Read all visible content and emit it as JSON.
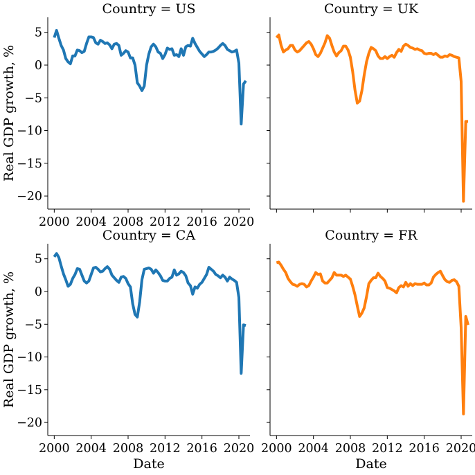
{
  "chart_data": [
    {
      "type": "line",
      "title": "Country = US",
      "xlabel": "",
      "ylabel": "Real GDP growth, %",
      "color": "#1f77b4",
      "xlim": [
        1999.3,
        2021.2
      ],
      "ylim": [
        -22,
        7.3
      ],
      "xticks": [
        2000,
        2004,
        2008,
        2012,
        2016,
        2020
      ],
      "yticks": [
        5,
        0,
        -5,
        -10,
        -15,
        -20
      ],
      "xtick_labels": [
        "2000",
        "2004",
        "2008",
        "2012",
        "2016",
        "2020"
      ],
      "ytick_labels": [
        "5",
        "0",
        "−5",
        "−10",
        "−15",
        "−20"
      ],
      "x": [
        2000.0,
        2000.25,
        2000.5,
        2000.75,
        2001.0,
        2001.25,
        2001.5,
        2001.75,
        2002.0,
        2002.25,
        2002.5,
        2002.75,
        2003.0,
        2003.25,
        2003.5,
        2003.75,
        2004.0,
        2004.25,
        2004.5,
        2004.75,
        2005.0,
        2005.25,
        2005.5,
        2005.75,
        2006.0,
        2006.25,
        2006.5,
        2006.75,
        2007.0,
        2007.25,
        2007.5,
        2007.75,
        2008.0,
        2008.25,
        2008.5,
        2008.75,
        2009.0,
        2009.25,
        2009.5,
        2009.75,
        2010.0,
        2010.25,
        2010.5,
        2010.75,
        2011.0,
        2011.25,
        2011.5,
        2011.75,
        2012.0,
        2012.25,
        2012.5,
        2012.75,
        2013.0,
        2013.25,
        2013.5,
        2013.75,
        2014.0,
        2014.25,
        2014.5,
        2014.75,
        2015.0,
        2015.25,
        2015.5,
        2015.75,
        2016.0,
        2016.25,
        2016.5,
        2016.75,
        2017.0,
        2017.25,
        2017.5,
        2017.75,
        2018.0,
        2018.25,
        2018.5,
        2018.75,
        2019.0,
        2019.25,
        2019.5,
        2019.75,
        2020.0,
        2020.25,
        2020.5,
        2020.75
      ],
      "y": [
        4.2,
        5.3,
        4.1,
        3.0,
        2.3,
        1.0,
        0.5,
        0.2,
        1.4,
        1.4,
        2.3,
        2.2,
        1.9,
        2.1,
        3.3,
        4.3,
        4.3,
        4.2,
        3.4,
        3.2,
        3.8,
        3.6,
        3.3,
        3.4,
        3.1,
        2.5,
        3.2,
        3.3,
        3.0,
        1.5,
        1.8,
        2.2,
        2.0,
        1.1,
        1.1,
        0.0,
        -2.7,
        -3.2,
        -3.9,
        -3.2,
        0.0,
        1.7,
        2.8,
        3.2,
        2.8,
        2.0,
        1.8,
        1.0,
        1.6,
        2.6,
        2.4,
        2.5,
        1.5,
        1.6,
        1.3,
        2.5,
        1.5,
        2.8,
        3.0,
        2.9,
        4.1,
        3.3,
        2.7,
        2.1,
        1.7,
        1.3,
        1.6,
        2.0,
        2.0,
        2.1,
        2.3,
        2.6,
        3.0,
        3.3,
        3.0,
        2.4,
        2.2,
        2.0,
        2.1,
        2.3,
        0.3,
        -9.0,
        -2.9,
        -2.4
      ]
    },
    {
      "type": "line",
      "title": "Country = UK",
      "xlabel": "",
      "ylabel": "",
      "color": "#ff7f0e",
      "xlim": [
        1999.3,
        2021.2
      ],
      "ylim": [
        -22,
        7.3
      ],
      "xticks": [
        2000,
        2004,
        2008,
        2012,
        2016,
        2020
      ],
      "yticks": [
        5,
        0,
        -5,
        -10,
        -15,
        -20
      ],
      "xtick_labels": [],
      "ytick_labels": [],
      "x": [
        2000.0,
        2000.25,
        2000.5,
        2000.75,
        2001.0,
        2001.25,
        2001.5,
        2001.75,
        2002.0,
        2002.25,
        2002.5,
        2002.75,
        2003.0,
        2003.25,
        2003.5,
        2003.75,
        2004.0,
        2004.25,
        2004.5,
        2004.75,
        2005.0,
        2005.25,
        2005.5,
        2005.75,
        2006.0,
        2006.25,
        2006.5,
        2006.75,
        2007.0,
        2007.25,
        2007.5,
        2007.75,
        2008.0,
        2008.25,
        2008.5,
        2008.75,
        2009.0,
        2009.25,
        2009.5,
        2009.75,
        2010.0,
        2010.25,
        2010.5,
        2010.75,
        2011.0,
        2011.25,
        2011.5,
        2011.75,
        2012.0,
        2012.25,
        2012.5,
        2012.75,
        2013.0,
        2013.25,
        2013.5,
        2013.75,
        2014.0,
        2014.25,
        2014.5,
        2014.75,
        2015.0,
        2015.25,
        2015.5,
        2015.75,
        2016.0,
        2016.25,
        2016.5,
        2016.75,
        2017.0,
        2017.25,
        2017.5,
        2017.75,
        2018.0,
        2018.25,
        2018.5,
        2018.75,
        2019.0,
        2019.25,
        2019.5,
        2019.75,
        2020.0,
        2020.25,
        2020.5,
        2020.75
      ],
      "y": [
        4.2,
        4.6,
        3.0,
        2.0,
        2.3,
        2.5,
        3.0,
        3.0,
        2.3,
        2.0,
        2.2,
        2.6,
        3.0,
        3.4,
        3.6,
        3.2,
        2.5,
        1.6,
        1.3,
        1.8,
        2.6,
        3.4,
        4.5,
        4.1,
        3.0,
        2.0,
        1.4,
        1.9,
        2.2,
        2.9,
        2.9,
        2.3,
        1.2,
        -1.0,
        -3.8,
        -5.8,
        -5.5,
        -3.9,
        -1.5,
        0.5,
        1.8,
        2.7,
        2.5,
        2.2,
        1.4,
        1.0,
        1.0,
        1.3,
        1.0,
        1.3,
        1.5,
        1.2,
        1.9,
        2.4,
        2.1,
        2.9,
        3.2,
        3.0,
        2.7,
        2.6,
        2.4,
        2.5,
        2.3,
        2.2,
        1.8,
        1.7,
        1.8,
        1.8,
        1.6,
        1.8,
        1.5,
        1.2,
        1.2,
        1.4,
        1.3,
        1.6,
        1.5,
        1.3,
        1.2,
        1.1,
        -2.5,
        -20.8,
        -8.6,
        -8.6
      ]
    },
    {
      "type": "line",
      "title": "Country = CA",
      "xlabel": "Date",
      "ylabel": "Real GDP growth, %",
      "color": "#1f77b4",
      "xlim": [
        1999.3,
        2021.2
      ],
      "ylim": [
        -22,
        7.3
      ],
      "xticks": [
        2000,
        2004,
        2008,
        2012,
        2016,
        2020
      ],
      "yticks": [
        5,
        0,
        -5,
        -10,
        -15,
        -20
      ],
      "xtick_labels": [
        "2000",
        "2004",
        "2008",
        "2012",
        "2016",
        "2020"
      ],
      "ytick_labels": [
        "5",
        "0",
        "−5",
        "−10",
        "−15",
        "−20"
      ],
      "x": [
        2000.0,
        2000.25,
        2000.5,
        2000.75,
        2001.0,
        2001.25,
        2001.5,
        2001.75,
        2002.0,
        2002.25,
        2002.5,
        2002.75,
        2003.0,
        2003.25,
        2003.5,
        2003.75,
        2004.0,
        2004.25,
        2004.5,
        2004.75,
        2005.0,
        2005.25,
        2005.5,
        2005.75,
        2006.0,
        2006.25,
        2006.5,
        2006.75,
        2007.0,
        2007.25,
        2007.5,
        2007.75,
        2008.0,
        2008.25,
        2008.5,
        2008.75,
        2009.0,
        2009.25,
        2009.5,
        2009.75,
        2010.0,
        2010.25,
        2010.5,
        2010.75,
        2011.0,
        2011.25,
        2011.5,
        2011.75,
        2012.0,
        2012.25,
        2012.5,
        2012.75,
        2013.0,
        2013.25,
        2013.5,
        2013.75,
        2014.0,
        2014.25,
        2014.5,
        2014.75,
        2015.0,
        2015.25,
        2015.5,
        2015.75,
        2016.0,
        2016.25,
        2016.5,
        2016.75,
        2017.0,
        2017.25,
        2017.5,
        2017.75,
        2018.0,
        2018.25,
        2018.5,
        2018.75,
        2019.0,
        2019.25,
        2019.5,
        2019.75,
        2020.0,
        2020.25,
        2020.5,
        2020.75
      ],
      "y": [
        5.3,
        5.8,
        5.2,
        3.9,
        2.7,
        1.8,
        0.8,
        1.1,
        2.0,
        2.6,
        3.5,
        3.4,
        2.5,
        1.6,
        1.3,
        1.6,
        2.6,
        3.6,
        3.7,
        3.4,
        3.0,
        3.1,
        3.5,
        3.8,
        3.4,
        2.5,
        2.1,
        1.7,
        1.4,
        2.2,
        2.3,
        2.0,
        1.2,
        0.7,
        -1.9,
        -3.5,
        -3.9,
        -1.6,
        1.8,
        3.4,
        3.5,
        3.6,
        3.4,
        2.8,
        3.3,
        2.9,
        2.4,
        1.7,
        1.6,
        1.6,
        2.0,
        2.2,
        3.3,
        2.5,
        2.7,
        3.1,
        2.9,
        2.4,
        1.3,
        0.9,
        -0.4,
        0.7,
        0.5,
        1.1,
        1.4,
        2.0,
        2.6,
        3.7,
        3.4,
        3.1,
        2.6,
        2.4,
        2.1,
        2.5,
        2.2,
        1.6,
        2.2,
        1.9,
        1.7,
        1.4,
        -0.9,
        -12.5,
        -5.1,
        -5.2
      ]
    },
    {
      "type": "line",
      "title": "Country = FR",
      "xlabel": "Date",
      "ylabel": "",
      "color": "#ff7f0e",
      "xlim": [
        1999.3,
        2021.2
      ],
      "ylim": [
        -22,
        7.3
      ],
      "xticks": [
        2000,
        2004,
        2008,
        2012,
        2016,
        2020
      ],
      "yticks": [
        5,
        0,
        -5,
        -10,
        -15,
        -20
      ],
      "xtick_labels": [
        "2000",
        "2004",
        "2008",
        "2012",
        "2016",
        "2020"
      ],
      "ytick_labels": [],
      "x": [
        2000.0,
        2000.25,
        2000.5,
        2000.75,
        2001.0,
        2001.25,
        2001.5,
        2001.75,
        2002.0,
        2002.25,
        2002.5,
        2002.75,
        2003.0,
        2003.25,
        2003.5,
        2003.75,
        2004.0,
        2004.25,
        2004.5,
        2004.75,
        2005.0,
        2005.25,
        2005.5,
        2005.75,
        2006.0,
        2006.25,
        2006.5,
        2006.75,
        2007.0,
        2007.25,
        2007.5,
        2007.75,
        2008.0,
        2008.25,
        2008.5,
        2008.75,
        2009.0,
        2009.25,
        2009.5,
        2009.75,
        2010.0,
        2010.25,
        2010.5,
        2010.75,
        2011.0,
        2011.25,
        2011.5,
        2011.75,
        2012.0,
        2012.25,
        2012.5,
        2012.75,
        2013.0,
        2013.25,
        2013.5,
        2013.75,
        2014.0,
        2014.25,
        2014.5,
        2014.75,
        2015.0,
        2015.25,
        2015.5,
        2015.75,
        2016.0,
        2016.25,
        2016.5,
        2016.75,
        2017.0,
        2017.25,
        2017.5,
        2017.75,
        2018.0,
        2018.25,
        2018.5,
        2018.75,
        2019.0,
        2019.25,
        2019.5,
        2019.75,
        2020.0,
        2020.25,
        2020.5,
        2020.75
      ],
      "y": [
        4.4,
        4.5,
        4.0,
        3.4,
        2.9,
        2.0,
        1.5,
        1.1,
        1.0,
        0.8,
        1.1,
        1.2,
        1.1,
        0.7,
        0.9,
        1.6,
        2.2,
        2.9,
        2.6,
        2.7,
        1.6,
        1.3,
        1.3,
        1.7,
        2.1,
        2.9,
        2.5,
        2.5,
        2.5,
        2.3,
        2.5,
        2.2,
        1.9,
        0.8,
        -0.5,
        -2.2,
        -3.8,
        -3.3,
        -2.5,
        -0.8,
        1.2,
        1.7,
        2.1,
        2.1,
        2.8,
        2.3,
        2.0,
        1.6,
        0.6,
        0.5,
        0.3,
        0.1,
        -0.2,
        0.6,
        0.9,
        0.7,
        1.4,
        0.8,
        1.2,
        0.9,
        1.2,
        1.1,
        1.1,
        1.1,
        1.3,
        1.0,
        1.0,
        1.3,
        2.2,
        2.6,
        2.9,
        3.1,
        2.4,
        1.8,
        1.5,
        1.4,
        1.7,
        1.8,
        1.5,
        0.8,
        -5.5,
        -18.7,
        -3.8,
        -5.1
      ]
    }
  ]
}
